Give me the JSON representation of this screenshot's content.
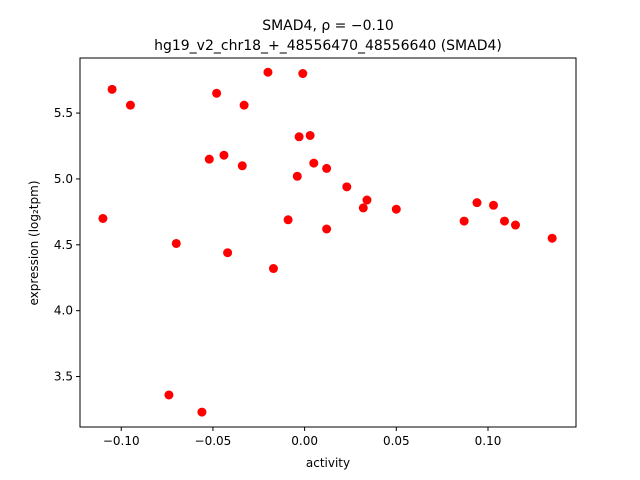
{
  "chart_data": {
    "type": "scatter",
    "title_line1": "SMAD4, ρ = −0.10",
    "title_line2": "hg19_v2_chr18_+_48556470_48556640 (SMAD4)",
    "xlabel": "activity",
    "ylabel": "expression (log₂tpm)",
    "xlim": [
      -0.1225,
      0.148
    ],
    "ylim": [
      3.117,
      5.918
    ],
    "xticks": [
      -0.1,
      -0.05,
      0.0,
      0.05,
      0.1
    ],
    "xtick_labels": [
      "−0.10",
      "−0.05",
      "0.00",
      "0.05",
      "0.10"
    ],
    "yticks": [
      3.5,
      4.0,
      4.5,
      5.0,
      5.5
    ],
    "ytick_labels": [
      "3.5",
      "4.0",
      "4.5",
      "5.0",
      "5.5"
    ],
    "marker_color": "#ff0000",
    "grid": false,
    "points": [
      {
        "x": -0.11,
        "y": 4.7
      },
      {
        "x": -0.105,
        "y": 5.68
      },
      {
        "x": -0.095,
        "y": 5.56
      },
      {
        "x": -0.074,
        "y": 3.36
      },
      {
        "x": -0.07,
        "y": 4.51
      },
      {
        "x": -0.056,
        "y": 3.23
      },
      {
        "x": -0.052,
        "y": 5.15
      },
      {
        "x": -0.048,
        "y": 5.65
      },
      {
        "x": -0.044,
        "y": 5.18
      },
      {
        "x": -0.042,
        "y": 4.44
      },
      {
        "x": -0.034,
        "y": 5.1
      },
      {
        "x": -0.033,
        "y": 5.56
      },
      {
        "x": -0.02,
        "y": 5.81
      },
      {
        "x": -0.017,
        "y": 4.32
      },
      {
        "x": -0.009,
        "y": 4.69
      },
      {
        "x": -0.004,
        "y": 5.02
      },
      {
        "x": -0.003,
        "y": 5.32
      },
      {
        "x": -0.001,
        "y": 5.8
      },
      {
        "x": 0.003,
        "y": 5.33
      },
      {
        "x": 0.005,
        "y": 5.12
      },
      {
        "x": 0.012,
        "y": 5.08
      },
      {
        "x": 0.012,
        "y": 4.62
      },
      {
        "x": 0.023,
        "y": 4.94
      },
      {
        "x": 0.032,
        "y": 4.78
      },
      {
        "x": 0.034,
        "y": 4.84
      },
      {
        "x": 0.05,
        "y": 4.77
      },
      {
        "x": 0.087,
        "y": 4.68
      },
      {
        "x": 0.094,
        "y": 4.82
      },
      {
        "x": 0.103,
        "y": 4.8
      },
      {
        "x": 0.109,
        "y": 4.68
      },
      {
        "x": 0.115,
        "y": 4.65
      },
      {
        "x": 0.135,
        "y": 4.55
      }
    ]
  }
}
